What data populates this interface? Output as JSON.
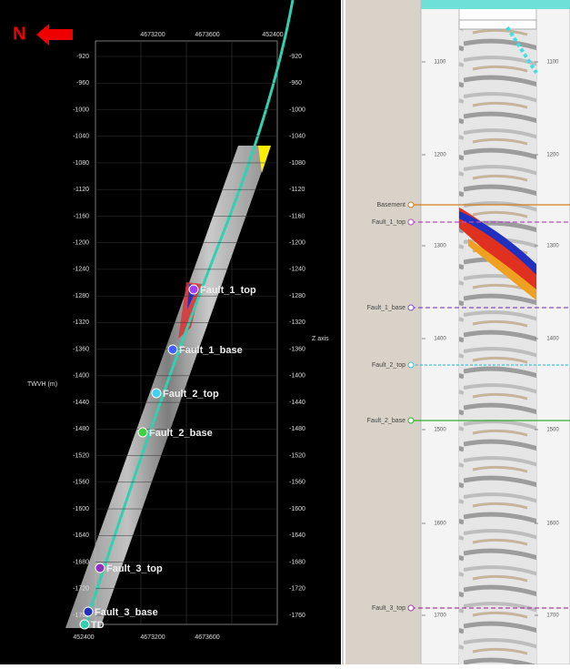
{
  "compass": "N",
  "well_view": {
    "x_labels_top": [
      "4673200",
      "4673600",
      "452400"
    ],
    "x_labels_bottom": [
      "452400",
      "4673200",
      "4673600"
    ],
    "y_ticks": [
      -920,
      -960,
      -1000,
      -1040,
      -1080,
      -1120,
      -1160,
      -1200,
      -1240,
      -1280,
      -1320,
      -1360,
      -1400,
      -1440,
      -1480,
      -1520,
      -1560,
      -1600,
      -1640,
      -1680,
      -1720,
      -1760
    ],
    "y_axis_label": "TWVH (m)",
    "z_axis_label": "Z axis",
    "markers": [
      "Fault_1_top",
      "Fault_1_base",
      "Fault_2_top",
      "Fault_2_base",
      "Fault_3_top",
      "Fault_3_base",
      "TD"
    ]
  },
  "log_view": {
    "depth_ticks": [
      1100,
      1200,
      1300,
      1400,
      1500,
      1600,
      1700
    ],
    "tops": [
      "Basement",
      "Fault_1_top",
      "Fault_1_base",
      "Fault_2_top",
      "Fault_2_base",
      "Fault_3_top"
    ]
  }
}
